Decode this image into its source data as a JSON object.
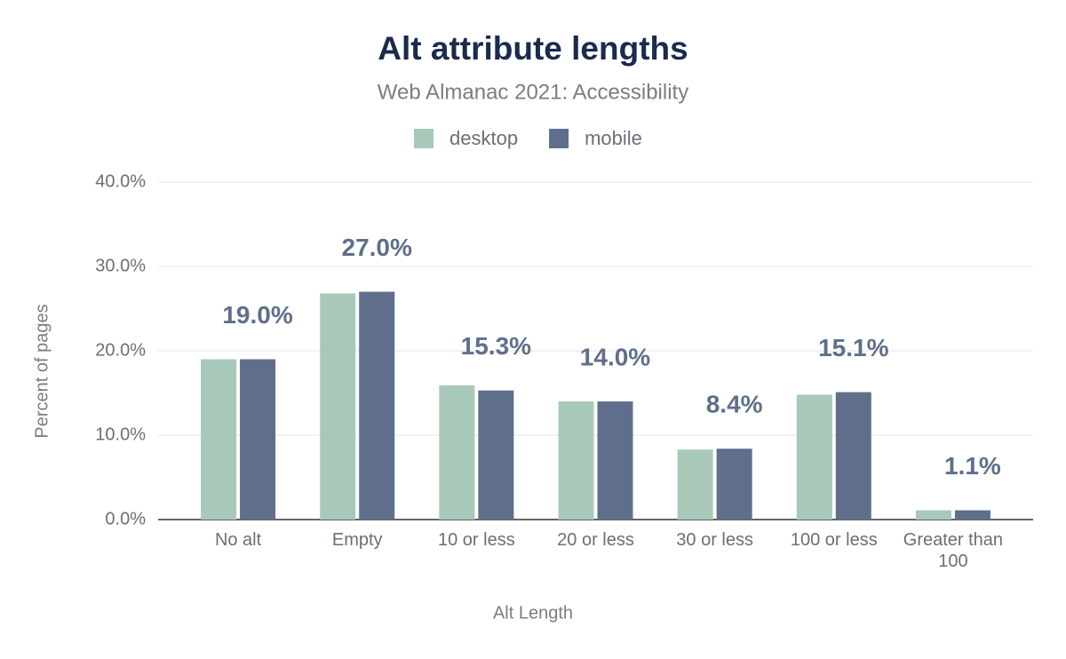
{
  "chart_data": {
    "type": "bar",
    "title": "Alt attribute lengths",
    "subtitle": "Web Almanac 2021: Accessibility",
    "x_label": "Alt Length",
    "y_label": "Percent of pages",
    "categories": [
      "No alt",
      "Empty",
      "10 or less",
      "20 or less",
      "30 or less",
      "100 or less",
      "Greater than 100"
    ],
    "series": [
      {
        "name": "desktop",
        "color": "#a8c9b9",
        "values": [
          19.0,
          26.8,
          15.9,
          14.0,
          8.3,
          14.8,
          1.1
        ]
      },
      {
        "name": "mobile",
        "color": "#5f6f8b",
        "values": [
          19.0,
          27.0,
          15.3,
          14.0,
          8.4,
          15.1,
          1.1
        ],
        "value_labels": [
          "19.0%",
          "27.0%",
          "15.3%",
          "14.0%",
          "8.4%",
          "15.1%",
          "1.1%"
        ]
      }
    ],
    "ylim": [
      0,
      40
    ],
    "yticks": [
      {
        "value": 0,
        "label": "0.0%"
      },
      {
        "value": 10,
        "label": "10.0%"
      },
      {
        "value": 20,
        "label": "20.0%"
      },
      {
        "value": 30,
        "label": "30.0%"
      },
      {
        "value": 40,
        "label": "40.0%"
      }
    ],
    "grid": true,
    "legend": "top"
  }
}
